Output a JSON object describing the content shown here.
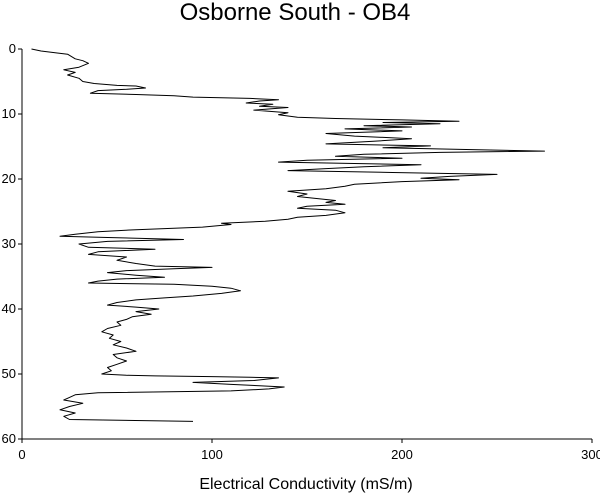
{
  "chart_data": {
    "type": "line",
    "title": "Osborne South - OB4",
    "xlabel": "Electrical Conductivity (mS/m)",
    "ylabel": "",
    "xlim": [
      0,
      300
    ],
    "ylim": [
      0,
      60
    ],
    "y_inverted": true,
    "x_ticks": [
      "0",
      "100",
      "200",
      "300"
    ],
    "y_ticks": [
      "0",
      "10",
      "20",
      "30",
      "40",
      "50",
      "60"
    ],
    "grid": false,
    "series": [
      {
        "points": [
          [
            5,
            0
          ],
          [
            10,
            0.3
          ],
          [
            18,
            0.6
          ],
          [
            24,
            0.8
          ],
          [
            28,
            1.5
          ],
          [
            32,
            1.8
          ],
          [
            35,
            2.2
          ],
          [
            30,
            2.8
          ],
          [
            22,
            3.2
          ],
          [
            28,
            3.6
          ],
          [
            24,
            4.0
          ],
          [
            30,
            4.5
          ],
          [
            32,
            5.0
          ],
          [
            38,
            5.3
          ],
          [
            50,
            5.6
          ],
          [
            60,
            5.7
          ],
          [
            65,
            6.0
          ],
          [
            55,
            6.2
          ],
          [
            40,
            6.4
          ],
          [
            36,
            6.8
          ],
          [
            60,
            7.0
          ],
          [
            80,
            7.2
          ],
          [
            90,
            7.4
          ],
          [
            120,
            7.6
          ],
          [
            135,
            7.8
          ],
          [
            125,
            8.0
          ],
          [
            118,
            8.3
          ],
          [
            132,
            8.5
          ],
          [
            125,
            8.8
          ],
          [
            140,
            9.0
          ],
          [
            122,
            9.4
          ],
          [
            140,
            9.8
          ],
          [
            135,
            10.1
          ],
          [
            145,
            10.5
          ],
          [
            165,
            10.7
          ],
          [
            200,
            10.9
          ],
          [
            230,
            11.1
          ],
          [
            190,
            11.3
          ],
          [
            220,
            11.5
          ],
          [
            180,
            11.8
          ],
          [
            205,
            12.0
          ],
          [
            170,
            12.3
          ],
          [
            200,
            12.6
          ],
          [
            160,
            13.0
          ],
          [
            175,
            13.4
          ],
          [
            205,
            13.8
          ],
          [
            185,
            14.2
          ],
          [
            160,
            14.6
          ],
          [
            215,
            14.9
          ],
          [
            190,
            15.2
          ],
          [
            240,
            15.5
          ],
          [
            275,
            15.7
          ],
          [
            220,
            15.9
          ],
          [
            180,
            16.2
          ],
          [
            165,
            16.5
          ],
          [
            200,
            16.8
          ],
          [
            150,
            17.1
          ],
          [
            135,
            17.4
          ],
          [
            210,
            17.8
          ],
          [
            180,
            18.1
          ],
          [
            160,
            18.4
          ],
          [
            140,
            18.7
          ],
          [
            195,
            19.0
          ],
          [
            250,
            19.3
          ],
          [
            225,
            19.6
          ],
          [
            210,
            19.9
          ],
          [
            230,
            20.1
          ],
          [
            200,
            20.4
          ],
          [
            175,
            20.8
          ],
          [
            170,
            21.1
          ],
          [
            160,
            21.5
          ],
          [
            140,
            21.9
          ],
          [
            150,
            22.3
          ],
          [
            145,
            22.7
          ],
          [
            155,
            23.0
          ],
          [
            165,
            23.3
          ],
          [
            160,
            23.6
          ],
          [
            170,
            23.9
          ],
          [
            150,
            24.2
          ],
          [
            145,
            24.5
          ],
          [
            165,
            24.8
          ],
          [
            170,
            25.2
          ],
          [
            160,
            25.6
          ],
          [
            145,
            25.9
          ],
          [
            140,
            26.2
          ],
          [
            128,
            26.5
          ],
          [
            105,
            26.8
          ],
          [
            110,
            27.0
          ],
          [
            95,
            27.4
          ],
          [
            60,
            27.8
          ],
          [
            40,
            28.1
          ],
          [
            28,
            28.5
          ],
          [
            20,
            28.8
          ],
          [
            45,
            29.0
          ],
          [
            85,
            29.3
          ],
          [
            45,
            29.6
          ],
          [
            30,
            30.0
          ],
          [
            35,
            30.5
          ],
          [
            70,
            30.8
          ],
          [
            40,
            31.2
          ],
          [
            35,
            31.6
          ],
          [
            55,
            32.0
          ],
          [
            50,
            32.5
          ],
          [
            60,
            33.0
          ],
          [
            70,
            33.4
          ],
          [
            100,
            33.6
          ],
          [
            80,
            33.8
          ],
          [
            55,
            34.1
          ],
          [
            45,
            34.4
          ],
          [
            60,
            34.8
          ],
          [
            75,
            35.1
          ],
          [
            50,
            35.4
          ],
          [
            40,
            35.7
          ],
          [
            35,
            36.0
          ],
          [
            80,
            36.2
          ],
          [
            100,
            36.5
          ],
          [
            110,
            36.8
          ],
          [
            115,
            37.2
          ],
          [
            105,
            37.6
          ],
          [
            90,
            38.0
          ],
          [
            75,
            38.3
          ],
          [
            60,
            38.6
          ],
          [
            50,
            39.0
          ],
          [
            45,
            39.4
          ],
          [
            60,
            39.7
          ],
          [
            72,
            40.0
          ],
          [
            60,
            40.4
          ],
          [
            68,
            40.8
          ],
          [
            58,
            41.2
          ],
          [
            55,
            41.6
          ],
          [
            50,
            42.0
          ],
          [
            52,
            42.5
          ],
          [
            45,
            43.0
          ],
          [
            42,
            43.5
          ],
          [
            48,
            44.0
          ],
          [
            46,
            44.5
          ],
          [
            52,
            45.0
          ],
          [
            48,
            45.5
          ],
          [
            55,
            46.0
          ],
          [
            60,
            46.5
          ],
          [
            48,
            47.0
          ],
          [
            50,
            47.5
          ],
          [
            55,
            48.0
          ],
          [
            50,
            48.5
          ],
          [
            45,
            49.0
          ],
          [
            47,
            49.5
          ],
          [
            42,
            50.0
          ],
          [
            55,
            50.2
          ],
          [
            70,
            50.3
          ],
          [
            100,
            50.4
          ],
          [
            120,
            50.5
          ],
          [
            135,
            50.6
          ],
          [
            122,
            51.0
          ],
          [
            90,
            51.3
          ],
          [
            110,
            51.6
          ],
          [
            125,
            51.8
          ],
          [
            138,
            52.0
          ],
          [
            130,
            52.3
          ],
          [
            110,
            52.6
          ],
          [
            40,
            52.9
          ],
          [
            28,
            53.2
          ],
          [
            25,
            53.6
          ],
          [
            22,
            54.0
          ],
          [
            32,
            54.5
          ],
          [
            25,
            55.0
          ],
          [
            20,
            55.5
          ],
          [
            28,
            56.0
          ],
          [
            22,
            56.5
          ],
          [
            25,
            57.0
          ],
          [
            90,
            57.3
          ]
        ]
      }
    ]
  }
}
